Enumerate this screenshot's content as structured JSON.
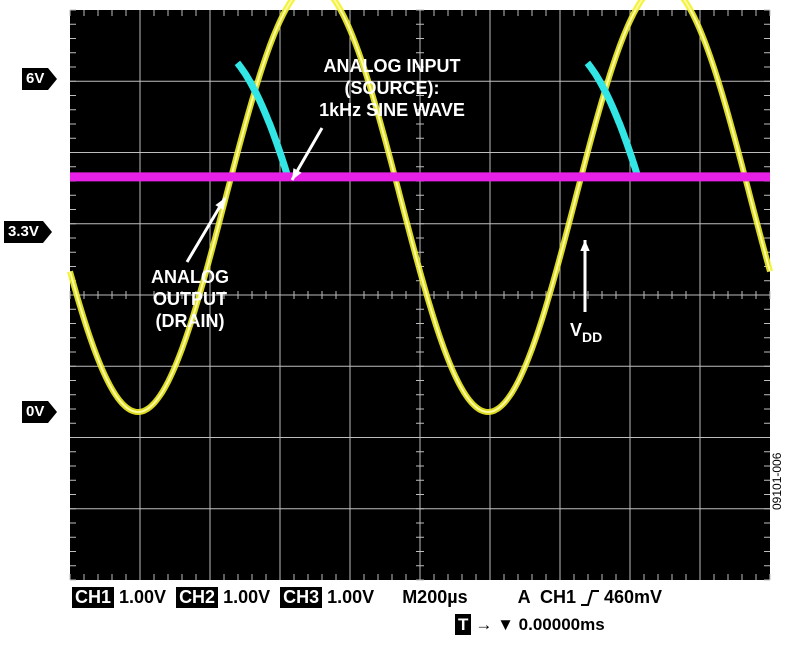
{
  "chart_data": {
    "type": "line",
    "xlabel": "",
    "ylabel": "",
    "x_divisions": 10,
    "y_divisions": 8,
    "x_unit_per_division_us": 200,
    "y_unit_per_division_V": 1.0,
    "series": [
      {
        "color": "#f2f226",
        "kind": "sine",
        "frequency_hz": 1000,
        "amplitude_V": 3.0,
        "offset_V": 3.0,
        "start_phase_deg": 200
      },
      {
        "color": "#33e6e6",
        "kind": "clamped",
        "start_V": 3.3,
        "peak_V": 4.9,
        "end_V": 3.3
      },
      {
        "color": "#e620e6",
        "kind": "dc",
        "level_V": 3.3
      }
    ],
    "annotations": [
      {
        "id": "input",
        "lines": [
          "ANALOG INPUT",
          "(SOURCE):",
          "1kHz SINE WAVE"
        ]
      },
      {
        "id": "output",
        "lines": [
          "ANALOG",
          "OUTPUT",
          "(DRAIN)"
        ]
      },
      {
        "id": "vdd",
        "text": "V",
        "sub": "DD"
      }
    ],
    "level_markers": [
      {
        "label": "6V",
        "value": 6
      },
      {
        "label": "3.3V",
        "value": 3.3
      },
      {
        "label": "0V",
        "value": 0
      }
    ]
  },
  "footer": {
    "ch1_label": "CH1",
    "ch1_value": "1.00V",
    "ch2_label": "CH2",
    "ch2_value": "1.00V",
    "ch3_label": "CH3",
    "ch3_value": "1.00V",
    "timebase": "M200µs",
    "trigger": "A  CH1",
    "trigger_level": "460mV",
    "t_label": "T",
    "t_offset": "→ ▼ 0.00000ms"
  },
  "figure_id": "09101-006"
}
